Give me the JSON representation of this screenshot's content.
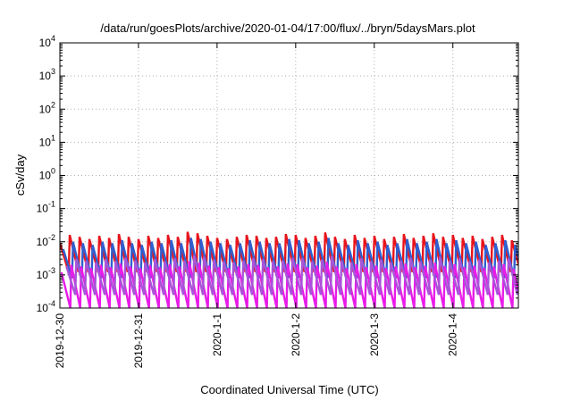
{
  "chart_data": {
    "type": "line",
    "title": "/data/run/goesPlots/archive/2020-01-04/17:00/flux/../bryn/5daysMars.plot",
    "xlabel": "Coordinated Universal Time (UTC)",
    "ylabel": "cSv/day",
    "yscale": "log",
    "ylim": [
      0.0001,
      10000
    ],
    "y_ticks": [
      {
        "value": 0.0001,
        "base": "10",
        "exp": "-4"
      },
      {
        "value": 0.001,
        "base": "10",
        "exp": "-3"
      },
      {
        "value": 0.01,
        "base": "10",
        "exp": "-2"
      },
      {
        "value": 0.1,
        "base": "10",
        "exp": "-1"
      },
      {
        "value": 1,
        "base": "10",
        "exp": "0"
      },
      {
        "value": 10,
        "base": "10",
        "exp": "1"
      },
      {
        "value": 100,
        "base": "10",
        "exp": "2"
      },
      {
        "value": 1000,
        "base": "10",
        "exp": "3"
      },
      {
        "value": 10000,
        "base": "10",
        "exp": "4"
      }
    ],
    "xlim": [
      "2019-12-30T00:00",
      "2020-01-04T20:00"
    ],
    "x_ticks": [
      {
        "value": "2019-12-30T00:00",
        "label": "2019-12-30"
      },
      {
        "value": "2019-12-31T00:00",
        "label": "2019-12-31"
      },
      {
        "value": "2020-01-01T00:00",
        "label": "2020-1-1"
      },
      {
        "value": "2020-01-02T00:00",
        "label": "2020-1-2"
      },
      {
        "value": "2020-01-03T00:00",
        "label": "2020-1-3"
      },
      {
        "value": "2020-01-04T00:00",
        "label": "2020-1-4"
      }
    ],
    "grid": true,
    "legend": "none",
    "series_pattern": "sawtooth",
    "cycle_hours": 3,
    "series": [
      {
        "color": "#e8141c",
        "x": [
          "2019-12-30T00:00",
          "2019-12-30T03:00",
          "2019-12-30T06:00",
          "2019-12-30T09:00",
          "2019-12-30T12:00",
          "2019-12-30T15:00",
          "2019-12-30T18:00",
          "2019-12-30T21:00",
          "2019-12-31T00:00",
          "2019-12-31T03:00",
          "2019-12-31T06:00",
          "2019-12-31T09:00",
          "2019-12-31T12:00",
          "2019-12-31T15:00",
          "2019-12-31T18:00",
          "2019-12-31T21:00",
          "2020-01-01T00:00",
          "2020-01-01T03:00",
          "2020-01-01T06:00",
          "2020-01-01T09:00",
          "2020-01-01T12:00",
          "2020-01-01T15:00",
          "2020-01-01T18:00",
          "2020-01-01T21:00",
          "2020-01-02T00:00",
          "2020-01-02T03:00",
          "2020-01-02T06:00",
          "2020-01-02T09:00",
          "2020-01-02T12:00",
          "2020-01-02T15:00",
          "2020-01-02T18:00",
          "2020-01-02T21:00",
          "2020-01-03T00:00",
          "2020-01-03T03:00",
          "2020-01-03T06:00",
          "2020-01-03T09:00",
          "2020-01-03T12:00",
          "2020-01-03T15:00",
          "2020-01-03T18:00",
          "2020-01-03T21:00",
          "2020-01-04T00:00",
          "2020-01-04T03:00",
          "2020-01-04T06:00",
          "2020-01-04T09:00",
          "2020-01-04T12:00",
          "2020-01-04T15:00",
          "2020-01-04T18:00"
        ],
        "peaks": [
          0.009,
          0.016,
          0.014,
          0.012,
          0.015,
          0.013,
          0.017,
          0.014,
          0.012,
          0.015,
          0.013,
          0.016,
          0.014,
          0.02,
          0.018,
          0.015,
          0.013,
          0.012,
          0.014,
          0.016,
          0.015,
          0.013,
          0.014,
          0.017,
          0.016,
          0.013,
          0.015,
          0.019,
          0.014,
          0.012,
          0.016,
          0.013,
          0.015,
          0.012,
          0.014,
          0.017,
          0.013,
          0.015,
          0.018,
          0.014,
          0.016,
          0.013,
          0.015,
          0.012,
          0.014,
          0.016,
          0.011
        ],
        "trough": 0.0012
      },
      {
        "color": "#2f5fd0",
        "x": [
          "2019-12-30T01:00",
          "2019-12-30T04:00",
          "2019-12-30T07:00",
          "2019-12-30T10:00",
          "2019-12-30T13:00",
          "2019-12-30T16:00",
          "2019-12-30T19:00",
          "2019-12-30T22:00",
          "2019-12-31T01:00",
          "2019-12-31T04:00",
          "2019-12-31T07:00",
          "2019-12-31T10:00",
          "2019-12-31T13:00",
          "2019-12-31T16:00",
          "2019-12-31T19:00",
          "2019-12-31T22:00",
          "2020-01-01T01:00",
          "2020-01-01T04:00",
          "2020-01-01T07:00",
          "2020-01-01T10:00",
          "2020-01-01T13:00",
          "2020-01-01T16:00",
          "2020-01-01T19:00",
          "2020-01-01T22:00",
          "2020-01-02T01:00",
          "2020-01-02T04:00",
          "2020-01-02T07:00",
          "2020-01-02T10:00",
          "2020-01-02T13:00",
          "2020-01-02T16:00",
          "2020-01-02T19:00",
          "2020-01-02T22:00",
          "2020-01-03T01:00",
          "2020-01-03T04:00",
          "2020-01-03T07:00",
          "2020-01-03T10:00",
          "2020-01-03T13:00",
          "2020-01-03T16:00",
          "2020-01-03T19:00",
          "2020-01-03T22:00",
          "2020-01-04T01:00",
          "2020-01-04T04:00",
          "2020-01-04T07:00",
          "2020-01-04T10:00",
          "2020-01-04T13:00",
          "2020-01-04T16:00",
          "2020-01-04T19:00"
        ],
        "peaks": [
          0.006,
          0.01,
          0.009,
          0.008,
          0.01,
          0.009,
          0.011,
          0.009,
          0.008,
          0.01,
          0.009,
          0.011,
          0.009,
          0.013,
          0.012,
          0.01,
          0.009,
          0.008,
          0.009,
          0.011,
          0.01,
          0.009,
          0.009,
          0.012,
          0.011,
          0.009,
          0.01,
          0.013,
          0.009,
          0.008,
          0.011,
          0.009,
          0.01,
          0.008,
          0.009,
          0.012,
          0.009,
          0.01,
          0.012,
          0.009,
          0.011,
          0.009,
          0.01,
          0.008,
          0.009,
          0.011,
          0.008
        ],
        "trough": 0.0008
      },
      {
        "color": "#e81ce8",
        "x": [
          "2019-12-30T00:30",
          "2019-12-30T03:30",
          "2019-12-30T06:30",
          "2019-12-30T09:30",
          "2019-12-30T12:30",
          "2019-12-30T15:30",
          "2019-12-30T18:30",
          "2019-12-30T21:30",
          "2019-12-31T00:30",
          "2019-12-31T03:30",
          "2019-12-31T06:30",
          "2019-12-31T09:30",
          "2019-12-31T12:30",
          "2019-12-31T15:30",
          "2019-12-31T18:30",
          "2019-12-31T21:30",
          "2020-01-01T00:30",
          "2020-01-01T03:30",
          "2020-01-01T06:30",
          "2020-01-01T09:30",
          "2020-01-01T12:30",
          "2020-01-01T15:30",
          "2020-01-01T18:30",
          "2020-01-01T21:30",
          "2020-01-02T00:30",
          "2020-01-02T03:30",
          "2020-01-02T06:30",
          "2020-01-02T09:30",
          "2020-01-02T12:30",
          "2020-01-02T15:30",
          "2020-01-02T18:30",
          "2020-01-02T21:30",
          "2020-01-03T00:30",
          "2020-01-03T03:30",
          "2020-01-03T06:30",
          "2020-01-03T09:30",
          "2020-01-03T12:30",
          "2020-01-03T15:30",
          "2020-01-03T18:30",
          "2020-01-03T21:30",
          "2020-01-04T00:30",
          "2020-01-04T03:30",
          "2020-01-04T06:30",
          "2020-01-04T09:30",
          "2020-01-04T12:30",
          "2020-01-04T15:30",
          "2020-01-04T18:30"
        ],
        "peaks": [
          0.0012,
          0.002,
          0.0018,
          0.0016,
          0.002,
          0.0017,
          0.0022,
          0.0018,
          0.0016,
          0.002,
          0.0017,
          0.0021,
          0.0018,
          0.0026,
          0.0023,
          0.0019,
          0.0017,
          0.0016,
          0.0018,
          0.0021,
          0.002,
          0.0017,
          0.0018,
          0.0022,
          0.0021,
          0.0017,
          0.0019,
          0.0025,
          0.0018,
          0.0016,
          0.0021,
          0.0017,
          0.0019,
          0.0016,
          0.0018,
          0.0022,
          0.0017,
          0.0019,
          0.0023,
          0.0018,
          0.0021,
          0.0017,
          0.0019,
          0.0016,
          0.0018,
          0.0021,
          0.0015
        ],
        "trough": 0.0001
      },
      {
        "color": "#a855d8",
        "x": [
          "2019-12-30T02:00",
          "2019-12-30T05:00",
          "2019-12-30T08:00",
          "2019-12-30T11:00",
          "2019-12-30T14:00",
          "2019-12-30T17:00",
          "2019-12-30T20:00",
          "2019-12-30T23:00",
          "2019-12-31T02:00",
          "2019-12-31T05:00",
          "2019-12-31T08:00",
          "2019-12-31T11:00",
          "2019-12-31T14:00",
          "2019-12-31T17:00",
          "2019-12-31T20:00",
          "2019-12-31T23:00",
          "2020-01-01T02:00",
          "2020-01-01T05:00",
          "2020-01-01T08:00",
          "2020-01-01T11:00",
          "2020-01-01T14:00",
          "2020-01-01T17:00",
          "2020-01-01T20:00",
          "2020-01-01T23:00",
          "2020-01-02T02:00",
          "2020-01-02T05:00",
          "2020-01-02T08:00",
          "2020-01-02T11:00",
          "2020-01-02T14:00",
          "2020-01-02T17:00",
          "2020-01-02T20:00",
          "2020-01-02T23:00",
          "2020-01-03T02:00",
          "2020-01-03T05:00",
          "2020-01-03T08:00",
          "2020-01-03T11:00",
          "2020-01-03T14:00",
          "2020-01-03T17:00",
          "2020-01-03T20:00",
          "2020-01-03T23:00",
          "2020-01-04T02:00",
          "2020-01-04T05:00",
          "2020-01-04T08:00",
          "2020-01-04T11:00",
          "2020-01-04T14:00",
          "2020-01-04T17:00"
        ],
        "peaks": [
          0.0018,
          0.003,
          0.0027,
          0.0024,
          0.003,
          0.0026,
          0.0033,
          0.0027,
          0.0024,
          0.003,
          0.0026,
          0.0032,
          0.0027,
          0.0039,
          0.0035,
          0.0029,
          0.0026,
          0.0024,
          0.0027,
          0.0032,
          0.003,
          0.0026,
          0.0027,
          0.0033,
          0.0032,
          0.0026,
          0.0029,
          0.0037,
          0.0027,
          0.0024,
          0.0032,
          0.0026,
          0.0029,
          0.0024,
          0.0027,
          0.0033,
          0.0026,
          0.0029,
          0.0035,
          0.0027,
          0.0032,
          0.0026,
          0.0029,
          0.0024,
          0.0027,
          0.0032
        ],
        "trough": 0.00025
      }
    ]
  }
}
